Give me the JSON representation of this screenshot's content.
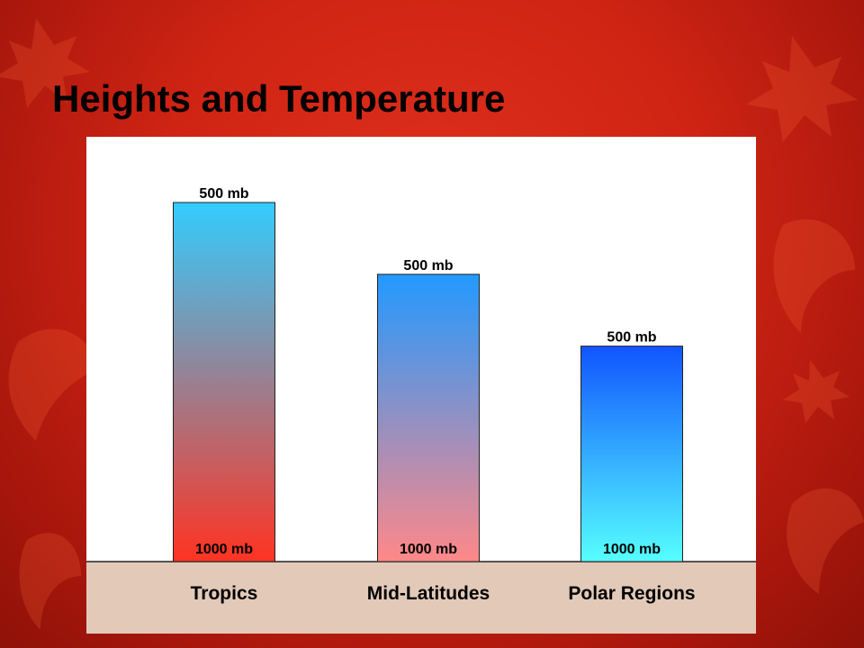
{
  "slide": {
    "title": "Heights and Temperature"
  },
  "chart_data": {
    "type": "bar",
    "categories": [
      "Tropics",
      "Mid-Latitudes",
      "Polar Regions"
    ],
    "values": [
      1.0,
      0.8,
      0.6
    ],
    "top_labels": [
      "500 mb",
      "500 mb",
      "500 mb"
    ],
    "bottom_labels": [
      "1000 mb",
      "1000 mb",
      "1000 mb"
    ],
    "ylim": [
      0,
      1.0
    ],
    "colors": {
      "tropics": [
        "#33ccff",
        "#ff3322"
      ],
      "midlatitudes": [
        "#2299ff",
        "#ff8888"
      ],
      "polar": [
        "#1155ff",
        "#55ffff"
      ],
      "ground": "#e2c9b8",
      "bar_stroke": "#222222"
    }
  }
}
